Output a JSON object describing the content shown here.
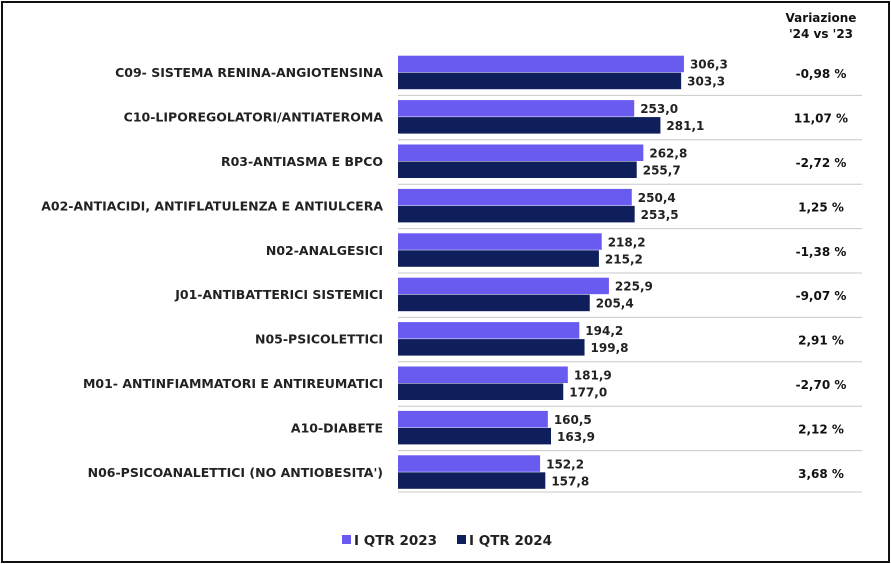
{
  "chart_data": {
    "type": "bar",
    "orientation": "horizontal",
    "categories": [
      "C09- SISTEMA RENINA-ANGIOTENSINA",
      "C10-LIPOREGOLATORI/ANTIATEROMA",
      "R03-ANTIASMA E BPCO",
      "A02-ANTIACIDI, ANTIFLATULENZA E ANTIULCERA",
      "N02-ANALGESICI",
      "J01-ANTIBATTERICI SISTEMICI",
      "N05-PSICOLETTICI",
      "M01- ANTINFIAMMATORI E ANTIREUMATICI",
      "A10-DIABETE",
      "N06-PSICOANALETTICI (NO ANTIOBESITA')"
    ],
    "series": [
      {
        "name": "I QTR 2023",
        "color": "#6A5BF0",
        "values": [
          306.3,
          253.0,
          262.8,
          250.4,
          218.2,
          225.9,
          194.2,
          181.9,
          160.5,
          152.2
        ],
        "labels": [
          "306,3",
          "253,0",
          "262,8",
          "250,4",
          "218,2",
          "225,9",
          "194,2",
          "181,9",
          "160,5",
          "152,2"
        ]
      },
      {
        "name": "I QTR 2024",
        "color": "#0F1F5C",
        "values": [
          303.3,
          281.1,
          255.7,
          253.5,
          215.2,
          205.4,
          199.8,
          177.0,
          163.9,
          157.8
        ],
        "labels": [
          "303,3",
          "281,1",
          "255,7",
          "253,5",
          "215,2",
          "205,4",
          "199,8",
          "177,0",
          "163,9",
          "157,8"
        ]
      }
    ],
    "variation_header": [
      "Variazione",
      "'24 vs '23"
    ],
    "variation": [
      "-0,98 %",
      "11,07 %",
      "-2,72 %",
      "1,25 %",
      "-1,38 %",
      "-9,07 %",
      "2,91 %",
      "-2,70 %",
      "2,12 %",
      "3,68 %"
    ],
    "legend_position": "bottom",
    "grid": false
  }
}
